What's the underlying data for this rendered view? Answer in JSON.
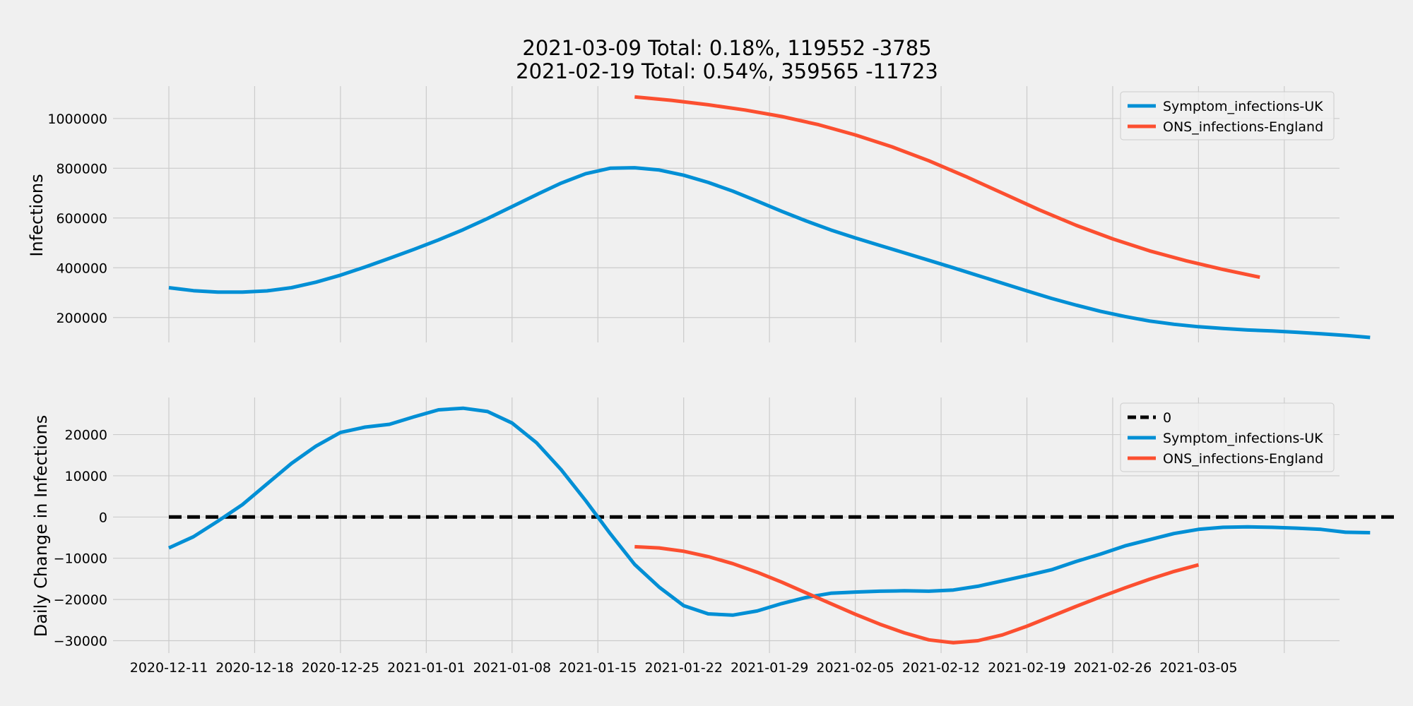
{
  "chart_data": {
    "type": "line",
    "title": [
      "2021-03-09 Total: 0.18%, 119552 -3785",
      "2021-02-19 Total: 0.54%, 359565 -11723"
    ],
    "x_tick_labels": [
      "2020-12-11",
      "2020-12-18",
      "2020-12-25",
      "2021-01-01",
      "2021-01-08",
      "2021-01-15",
      "2021-01-22",
      "2021-01-29",
      "2021-02-05",
      "2021-02-12",
      "2021-02-19",
      "2021-02-26",
      "2021-03-05"
    ],
    "colors": {
      "uk": "#008fd5",
      "england": "#fc4f30",
      "zero": "#000000",
      "background": "#f0f0f0",
      "grid": "#cbcbcb"
    },
    "panels": [
      {
        "ylabel": "Infections",
        "ylim": [
          100000,
          1130000
        ],
        "yticks": [
          200000,
          400000,
          600000,
          800000,
          1000000
        ],
        "ytick_labels": [
          "200000",
          "400000",
          "600000",
          "800000",
          "1000000"
        ],
        "legend": "top-right",
        "series": [
          {
            "name": "Symptom_infections-UK",
            "color_key": "uk",
            "points": [
              [
                "2020-12-11",
                320000
              ],
              [
                "2020-12-13",
                308000
              ],
              [
                "2020-12-15",
                302000
              ],
              [
                "2020-12-17",
                302000
              ],
              [
                "2020-12-19",
                307000
              ],
              [
                "2020-12-21",
                320000
              ],
              [
                "2020-12-23",
                342000
              ],
              [
                "2020-12-25",
                370000
              ],
              [
                "2020-12-27",
                403000
              ],
              [
                "2020-12-29",
                438000
              ],
              [
                "2020-12-31",
                474000
              ],
              [
                "2021-01-02",
                512000
              ],
              [
                "2021-01-04",
                553000
              ],
              [
                "2021-01-06",
                598000
              ],
              [
                "2021-01-08",
                646000
              ],
              [
                "2021-01-10",
                694000
              ],
              [
                "2021-01-12",
                740000
              ],
              [
                "2021-01-14",
                778000
              ],
              [
                "2021-01-16",
                800000
              ],
              [
                "2021-01-18",
                802000
              ],
              [
                "2021-01-20",
                793000
              ],
              [
                "2021-01-22",
                772000
              ],
              [
                "2021-01-24",
                743000
              ],
              [
                "2021-01-26",
                708000
              ],
              [
                "2021-01-28",
                668000
              ],
              [
                "2021-01-30",
                627000
              ],
              [
                "2021-02-01",
                588000
              ],
              [
                "2021-02-03",
                552000
              ],
              [
                "2021-02-05",
                520000
              ],
              [
                "2021-02-07",
                490000
              ],
              [
                "2021-02-09",
                460000
              ],
              [
                "2021-02-11",
                430000
              ],
              [
                "2021-02-13",
                400000
              ],
              [
                "2021-02-15",
                369000
              ],
              [
                "2021-02-17",
                338000
              ],
              [
                "2021-02-19",
                307000
              ],
              [
                "2021-02-21",
                277000
              ],
              [
                "2021-02-23",
                250000
              ],
              [
                "2021-02-25",
                225000
              ],
              [
                "2021-02-27",
                204000
              ],
              [
                "2021-03-01",
                186000
              ],
              [
                "2021-03-03",
                173000
              ],
              [
                "2021-03-05",
                163000
              ],
              [
                "2021-03-07",
                156000
              ],
              [
                "2021-03-09",
                150000
              ],
              [
                "2021-03-11",
                146000
              ],
              [
                "2021-03-13",
                141000
              ],
              [
                "2021-03-15",
                135000
              ],
              [
                "2021-03-17",
                128000
              ],
              [
                "2021-03-19",
                120000
              ]
            ]
          },
          {
            "name": "ONS_infections-England",
            "color_key": "england",
            "points": [
              [
                "2021-01-18",
                1087000
              ],
              [
                "2021-01-21",
                1073000
              ],
              [
                "2021-01-24",
                1055000
              ],
              [
                "2021-01-27",
                1034000
              ],
              [
                "2021-01-30",
                1008000
              ],
              [
                "2021-02-02",
                975000
              ],
              [
                "2021-02-05",
                934000
              ],
              [
                "2021-02-08",
                886000
              ],
              [
                "2021-02-11",
                830000
              ],
              [
                "2021-02-14",
                767000
              ],
              [
                "2021-02-17",
                700000
              ],
              [
                "2021-02-20",
                633000
              ],
              [
                "2021-02-23",
                571000
              ],
              [
                "2021-02-26",
                516000
              ],
              [
                "2021-03-01",
                468000
              ],
              [
                "2021-03-04",
                428000
              ],
              [
                "2021-03-07",
                393000
              ],
              [
                "2021-03-10",
                362000
              ]
            ]
          }
        ]
      },
      {
        "ylabel": "Daily Change in Infections",
        "ylim": [
          -33000,
          29000
        ],
        "yticks": [
          -30000,
          -20000,
          -10000,
          0,
          10000,
          20000
        ],
        "ytick_labels": [
          "−30000",
          "−20000",
          "−10000",
          "0",
          "10000",
          "20000"
        ],
        "legend": "top-right",
        "series": [
          {
            "name": "0",
            "color_key": "zero",
            "dashed": true,
            "points": [
              [
                "2020-12-11",
                0
              ],
              [
                "2021-03-21",
                0
              ]
            ]
          },
          {
            "name": "Symptom_infections-UK",
            "color_key": "uk",
            "points": [
              [
                "2020-12-11",
                -7500
              ],
              [
                "2020-12-13",
                -4800
              ],
              [
                "2020-12-15",
                -1000
              ],
              [
                "2020-12-17",
                3000
              ],
              [
                "2020-12-19",
                8000
              ],
              [
                "2020-12-21",
                13000
              ],
              [
                "2020-12-23",
                17200
              ],
              [
                "2020-12-25",
                20500
              ],
              [
                "2020-12-27",
                21800
              ],
              [
                "2020-12-29",
                22500
              ],
              [
                "2020-12-31",
                24300
              ],
              [
                "2021-01-02",
                26000
              ],
              [
                "2021-01-04",
                26400
              ],
              [
                "2021-01-06",
                25600
              ],
              [
                "2021-01-08",
                22800
              ],
              [
                "2021-01-10",
                18000
              ],
              [
                "2021-01-12",
                11500
              ],
              [
                "2021-01-14",
                4000
              ],
              [
                "2021-01-16",
                -4000
              ],
              [
                "2021-01-18",
                -11500
              ],
              [
                "2021-01-20",
                -17000
              ],
              [
                "2021-01-22",
                -21500
              ],
              [
                "2021-01-24",
                -23500
              ],
              [
                "2021-01-26",
                -23800
              ],
              [
                "2021-01-28",
                -22800
              ],
              [
                "2021-01-30",
                -21000
              ],
              [
                "2021-02-01",
                -19500
              ],
              [
                "2021-02-03",
                -18500
              ],
              [
                "2021-02-05",
                -18200
              ],
              [
                "2021-02-07",
                -18000
              ],
              [
                "2021-02-09",
                -17900
              ],
              [
                "2021-02-11",
                -18000
              ],
              [
                "2021-02-13",
                -17700
              ],
              [
                "2021-02-15",
                -16800
              ],
              [
                "2021-02-17",
                -15500
              ],
              [
                "2021-02-19",
                -14200
              ],
              [
                "2021-02-21",
                -12800
              ],
              [
                "2021-02-23",
                -10800
              ],
              [
                "2021-02-25",
                -9000
              ],
              [
                "2021-02-27",
                -7000
              ],
              [
                "2021-03-01",
                -5500
              ],
              [
                "2021-03-03",
                -4000
              ],
              [
                "2021-03-05",
                -3000
              ],
              [
                "2021-03-07",
                -2500
              ],
              [
                "2021-03-09",
                -2400
              ],
              [
                "2021-03-11",
                -2500
              ],
              [
                "2021-03-13",
                -2700
              ],
              [
                "2021-03-15",
                -3000
              ],
              [
                "2021-03-17",
                -3700
              ],
              [
                "2021-03-19",
                -3800
              ]
            ]
          },
          {
            "name": "ONS_infections-England",
            "color_key": "england",
            "points": [
              [
                "2021-01-18",
                -7200
              ],
              [
                "2021-01-20",
                -7500
              ],
              [
                "2021-01-22",
                -8300
              ],
              [
                "2021-01-24",
                -9600
              ],
              [
                "2021-01-26",
                -11300
              ],
              [
                "2021-01-28",
                -13400
              ],
              [
                "2021-01-30",
                -15800
              ],
              [
                "2021-02-01",
                -18400
              ],
              [
                "2021-02-03",
                -21000
              ],
              [
                "2021-02-05",
                -23600
              ],
              [
                "2021-02-07",
                -26000
              ],
              [
                "2021-02-09",
                -28100
              ],
              [
                "2021-02-11",
                -29800
              ],
              [
                "2021-02-13",
                -30500
              ],
              [
                "2021-02-15",
                -30000
              ],
              [
                "2021-02-17",
                -28600
              ],
              [
                "2021-02-19",
                -26500
              ],
              [
                "2021-02-21",
                -24100
              ],
              [
                "2021-02-23",
                -21700
              ],
              [
                "2021-02-25",
                -19400
              ],
              [
                "2021-02-27",
                -17200
              ],
              [
                "2021-03-01",
                -15100
              ],
              [
                "2021-03-03",
                -13200
              ],
              [
                "2021-03-05",
                -11600
              ]
            ]
          }
        ]
      }
    ]
  }
}
